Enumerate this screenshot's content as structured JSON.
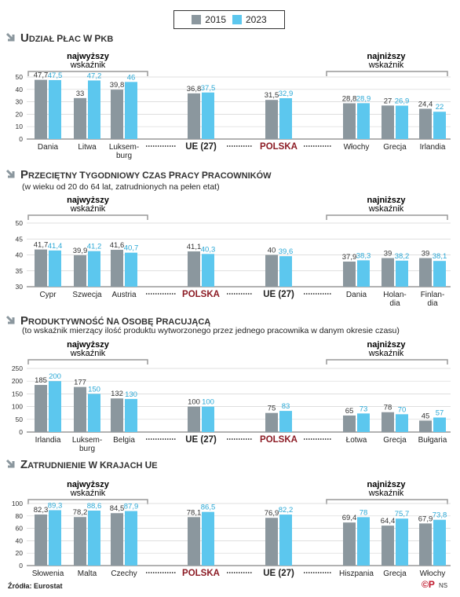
{
  "legend": {
    "items": [
      {
        "label": "2015",
        "color": "#8b979e"
      },
      {
        "label": "2023",
        "color": "#5cc7ee"
      }
    ]
  },
  "labels": {
    "highest": [
      "najwyższy",
      "wskaźnik"
    ],
    "lowest": [
      "najniższy",
      "wskaźnik"
    ]
  },
  "colors": {
    "title_arrow": "#8b979e",
    "accent_red": "#8c1b24"
  },
  "chart_data": [
    {
      "type": "bar",
      "title": "Udział płac w PKB",
      "subtitle": "",
      "ylim": [
        0,
        50
      ],
      "yticks": [
        0,
        10,
        20,
        30,
        40,
        50
      ],
      "categories": [
        [
          "Dania"
        ],
        [
          "Litwa"
        ],
        [
          "Luksem-",
          "burg"
        ],
        [
          "UE (27)"
        ],
        [
          "POLSKA"
        ],
        [
          "Włochy"
        ],
        [
          "Grecja"
        ],
        [
          "Irlandia"
        ]
      ],
      "bold": [
        false,
        false,
        false,
        true,
        true,
        false,
        false,
        false
      ],
      "red": [
        false,
        false,
        false,
        false,
        true,
        false,
        false,
        false
      ],
      "series": [
        {
          "name": "2015",
          "values": [
            47.7,
            33,
            39.8,
            36.8,
            31.5,
            28.8,
            27,
            24.4
          ],
          "labels": [
            "47,7",
            "33",
            "39,8",
            "36,8",
            "31,5",
            "28,8",
            "27",
            "24,4"
          ]
        },
        {
          "name": "2023",
          "values": [
            47.5,
            47.2,
            46,
            37.5,
            32.9,
            28.9,
            26.9,
            22
          ],
          "labels": [
            "47,5",
            "47,2",
            "46",
            "37,5",
            "32,9",
            "28,9",
            "26,9",
            "22"
          ]
        }
      ]
    },
    {
      "type": "bar",
      "title": "Przeciętny tygodniowy czas pracy pracowników",
      "subtitle": "(w wieku od 20 do 64 lat, zatrudnionych na pełen etat)",
      "ylim": [
        30,
        50
      ],
      "yticks": [
        30,
        35,
        40,
        45,
        50
      ],
      "categories": [
        [
          "Cypr"
        ],
        [
          "Szwecja"
        ],
        [
          "Austria"
        ],
        [
          "POLSKA"
        ],
        [
          "UE (27)"
        ],
        [
          "Dania"
        ],
        [
          "Holan-",
          "dia"
        ],
        [
          "Finlan-",
          "dia"
        ]
      ],
      "bold": [
        false,
        false,
        false,
        true,
        true,
        false,
        false,
        false
      ],
      "red": [
        false,
        false,
        false,
        true,
        false,
        false,
        false,
        false
      ],
      "series": [
        {
          "name": "2015",
          "values": [
            41.7,
            39.9,
            41.6,
            41.1,
            40,
            37.9,
            39,
            39
          ],
          "labels": [
            "41,7",
            "39,9",
            "41,6",
            "41,1",
            "40",
            "37,9",
            "39",
            "39"
          ]
        },
        {
          "name": "2023",
          "values": [
            41.4,
            41.2,
            40.7,
            40.3,
            39.6,
            38.3,
            38.2,
            38.1
          ],
          "labels": [
            "41,4",
            "41,2",
            "40,7",
            "40,3",
            "39,6",
            "38,3",
            "38,2",
            "38,1"
          ]
        }
      ]
    },
    {
      "type": "bar",
      "title": "Produktywność na osobę pracującą",
      "subtitle": "(to wskaźnik mierzący ilość produktu wytworzonego przez jednego pracownika w danym okresie czasu)",
      "ylim": [
        0,
        250
      ],
      "yticks": [
        0,
        50,
        100,
        150,
        200,
        250
      ],
      "categories": [
        [
          "Irlandia"
        ],
        [
          "Luksem-",
          "burg"
        ],
        [
          "Belgia"
        ],
        [
          "UE (27)"
        ],
        [
          "POLSKA"
        ],
        [
          "Łotwa"
        ],
        [
          "Grecja"
        ],
        [
          "Bułgaria"
        ]
      ],
      "bold": [
        false,
        false,
        false,
        true,
        true,
        false,
        false,
        false
      ],
      "red": [
        false,
        false,
        false,
        false,
        true,
        false,
        false,
        false
      ],
      "series": [
        {
          "name": "2015",
          "values": [
            185,
            177,
            132,
            100,
            75,
            65,
            78,
            45
          ],
          "labels": [
            "185",
            "177",
            "132",
            "100",
            "75",
            "65",
            "78",
            "45"
          ]
        },
        {
          "name": "2023",
          "values": [
            200,
            150,
            130,
            100,
            83,
            73,
            70,
            57
          ],
          "labels": [
            "200",
            "150",
            "130",
            "100",
            "83",
            "73",
            "70",
            "57"
          ]
        }
      ]
    },
    {
      "type": "bar",
      "title": "Zatrudnienie w krajach UE",
      "subtitle": "",
      "ylim": [
        0,
        100
      ],
      "yticks": [
        0,
        20,
        40,
        60,
        80,
        100
      ],
      "categories": [
        [
          "Słowenia"
        ],
        [
          "Malta"
        ],
        [
          "Czechy"
        ],
        [
          "POLSKA"
        ],
        [
          "UE (27)"
        ],
        [
          "Hiszpania"
        ],
        [
          "Grecja"
        ],
        [
          "Włochy"
        ]
      ],
      "bold": [
        false,
        false,
        false,
        true,
        true,
        false,
        false,
        false
      ],
      "red": [
        false,
        false,
        false,
        true,
        false,
        false,
        false,
        false
      ],
      "series": [
        {
          "name": "2015",
          "values": [
            82.3,
            78.2,
            84.5,
            78.1,
            76.9,
            69.4,
            64.4,
            67.9
          ],
          "labels": [
            "82,3",
            "78,2",
            "84,5",
            "78,1",
            "76,9",
            "69,4",
            "64,4",
            "67,9"
          ]
        },
        {
          "name": "2023",
          "values": [
            89.3,
            88.6,
            87.9,
            86.5,
            82.2,
            78,
            75.7,
            73.8
          ],
          "labels": [
            "89,3",
            "88,6",
            "87,9",
            "86,5",
            "82,2",
            "78",
            "75,7",
            "73,8"
          ]
        }
      ]
    }
  ],
  "footer": {
    "source": "Źródła: Eurostat",
    "logo": "©P",
    "logo_sub": "NS"
  }
}
